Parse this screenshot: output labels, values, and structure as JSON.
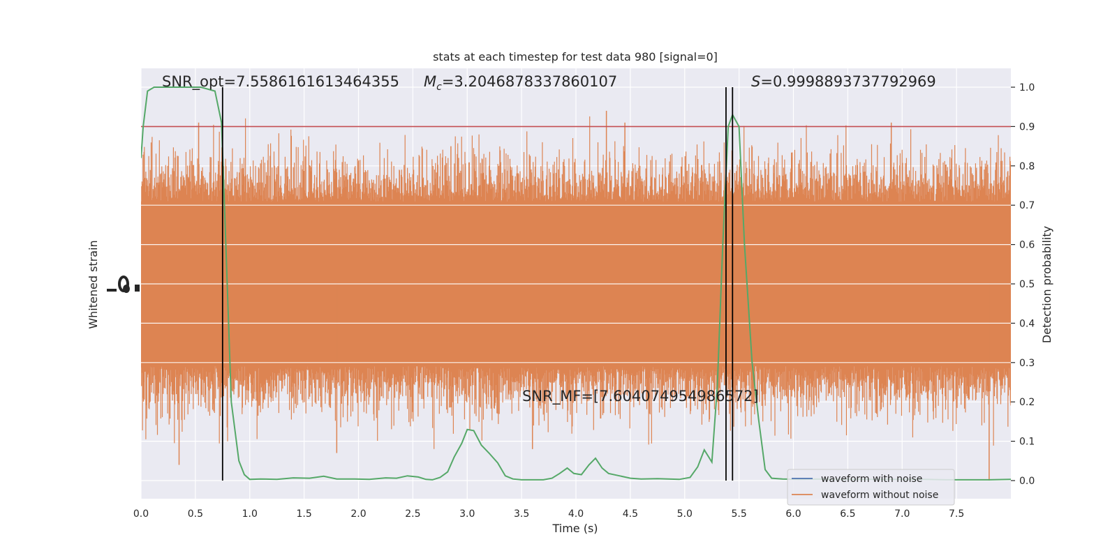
{
  "chart_data": {
    "type": "line",
    "title": "stats at each timestep for test data 980 [signal=0]",
    "xlabel": "Time (s)",
    "ylabel_left": "Whitened strain",
    "ylabel_right": "Detection probability",
    "xlim": [
      0.0,
      8.0
    ],
    "ylim_right": [
      -0.05,
      1.05
    ],
    "x_ticks": [
      "0.0",
      "0.5",
      "1.0",
      "1.5",
      "2.0",
      "2.5",
      "3.0",
      "3.5",
      "4.0",
      "4.5",
      "5.0",
      "5.5",
      "6.0",
      "6.5",
      "7.0",
      "7.5"
    ],
    "y_ticks_right": [
      "0.0",
      "0.1",
      "0.2",
      "0.3",
      "0.4",
      "0.5",
      "0.6",
      "0.7",
      "0.8",
      "0.9",
      "1.0"
    ],
    "grid": true,
    "legend_position": "lower-right",
    "annotations": {
      "snr_opt": "SNR_opt=7.5586161613464355",
      "mc_symbol": "M",
      "mc_sub": "c",
      "mc_value": "=3.2046878337860107",
      "s_symbol": "S",
      "s_value": "=0.9998893737792969",
      "snr_mf": "SNR_MF=[7.604074954986572]"
    },
    "threshold": 0.9,
    "vertical_lines_x": [
      0.75,
      5.38,
      5.44
    ],
    "strain_series": [
      {
        "name": "waveform with noise",
        "color": "#4c72b0"
      },
      {
        "name": "waveform without noise",
        "color": "#dd8452"
      }
    ],
    "probability_series": {
      "color": "#55a868",
      "points": [
        [
          0.0,
          0.82
        ],
        [
          0.02,
          0.9
        ],
        [
          0.06,
          0.99
        ],
        [
          0.12,
          1.0
        ],
        [
          0.25,
          1.0
        ],
        [
          0.4,
          1.0
        ],
        [
          0.55,
          1.0
        ],
        [
          0.68,
          0.99
        ],
        [
          0.74,
          0.91
        ],
        [
          0.78,
          0.6
        ],
        [
          0.83,
          0.2
        ],
        [
          0.9,
          0.05
        ],
        [
          0.95,
          0.015
        ],
        [
          1.0,
          0.003
        ],
        [
          1.1,
          0.004
        ],
        [
          1.25,
          0.003
        ],
        [
          1.4,
          0.007
        ],
        [
          1.55,
          0.006
        ],
        [
          1.68,
          0.011
        ],
        [
          1.8,
          0.004
        ],
        [
          1.95,
          0.004
        ],
        [
          2.1,
          0.003
        ],
        [
          2.25,
          0.007
        ],
        [
          2.35,
          0.006
        ],
        [
          2.45,
          0.012
        ],
        [
          2.55,
          0.009
        ],
        [
          2.62,
          0.003
        ],
        [
          2.68,
          0.002
        ],
        [
          2.75,
          0.008
        ],
        [
          2.82,
          0.022
        ],
        [
          2.88,
          0.06
        ],
        [
          2.95,
          0.095
        ],
        [
          3.0,
          0.13
        ],
        [
          3.06,
          0.127
        ],
        [
          3.13,
          0.09
        ],
        [
          3.2,
          0.07
        ],
        [
          3.28,
          0.045
        ],
        [
          3.35,
          0.012
        ],
        [
          3.42,
          0.004
        ],
        [
          3.5,
          0.002
        ],
        [
          3.6,
          0.002
        ],
        [
          3.7,
          0.002
        ],
        [
          3.78,
          0.006
        ],
        [
          3.85,
          0.018
        ],
        [
          3.92,
          0.032
        ],
        [
          3.98,
          0.018
        ],
        [
          4.05,
          0.015
        ],
        [
          4.12,
          0.04
        ],
        [
          4.18,
          0.057
        ],
        [
          4.24,
          0.032
        ],
        [
          4.3,
          0.018
        ],
        [
          4.4,
          0.012
        ],
        [
          4.5,
          0.006
        ],
        [
          4.6,
          0.004
        ],
        [
          4.75,
          0.005
        ],
        [
          4.85,
          0.004
        ],
        [
          4.95,
          0.003
        ],
        [
          5.05,
          0.008
        ],
        [
          5.12,
          0.035
        ],
        [
          5.18,
          0.078
        ],
        [
          5.25,
          0.047
        ],
        [
          5.3,
          0.24
        ],
        [
          5.35,
          0.6
        ],
        [
          5.4,
          0.9
        ],
        [
          5.44,
          0.93
        ],
        [
          5.5,
          0.9
        ],
        [
          5.55,
          0.6
        ],
        [
          5.62,
          0.3
        ],
        [
          5.68,
          0.155
        ],
        [
          5.74,
          0.028
        ],
        [
          5.8,
          0.006
        ],
        [
          5.9,
          0.004
        ],
        [
          6.05,
          0.003
        ],
        [
          6.2,
          0.004
        ],
        [
          6.4,
          0.003
        ],
        [
          6.6,
          0.003
        ],
        [
          6.8,
          0.003
        ],
        [
          7.0,
          0.003
        ],
        [
          7.2,
          0.003
        ],
        [
          7.4,
          0.002
        ],
        [
          7.6,
          0.002
        ],
        [
          7.8,
          0.002
        ],
        [
          8.0,
          0.003
        ]
      ]
    }
  }
}
